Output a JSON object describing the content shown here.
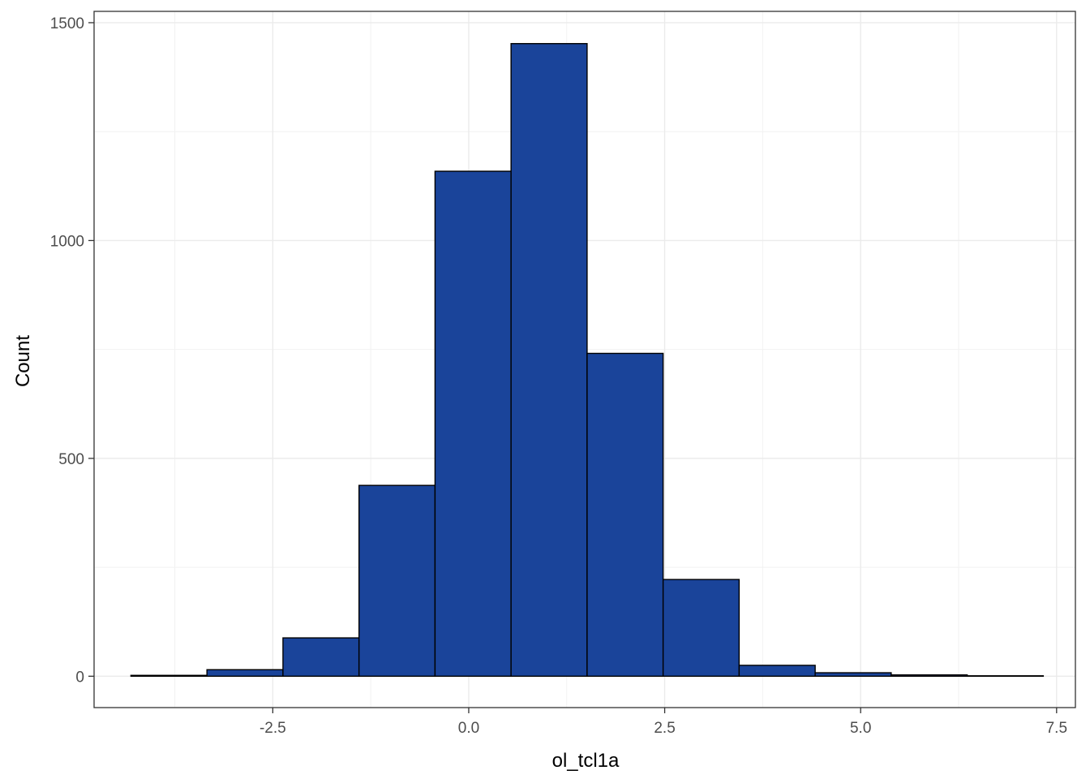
{
  "chart_data": {
    "type": "bar",
    "subtype": "histogram",
    "xlabel": "ol_tcl1a",
    "ylabel": "Count",
    "xlim": [
      -4.78,
      7.74
    ],
    "ylim": [
      -72,
      1526
    ],
    "xticks": [
      -2.5,
      0.0,
      2.5,
      5.0,
      7.5
    ],
    "xtick_labels": [
      "-2.5",
      "0.0",
      "2.5",
      "5.0",
      "7.5"
    ],
    "yticks": [
      0,
      500,
      1000,
      1500
    ],
    "ytick_labels": [
      "0",
      "500",
      "1000",
      "1500"
    ],
    "bins": [
      {
        "x0": -4.31,
        "x1": -3.34,
        "count": 2
      },
      {
        "x0": -3.34,
        "x1": -2.37,
        "count": 15
      },
      {
        "x0": -2.37,
        "x1": -1.4,
        "count": 88
      },
      {
        "x0": -1.4,
        "x1": -0.43,
        "count": 438
      },
      {
        "x0": -0.43,
        "x1": 0.54,
        "count": 1159
      },
      {
        "x0": 0.54,
        "x1": 1.51,
        "count": 1452
      },
      {
        "x0": 1.51,
        "x1": 2.48,
        "count": 741
      },
      {
        "x0": 2.48,
        "x1": 3.45,
        "count": 222
      },
      {
        "x0": 3.45,
        "x1": 4.42,
        "count": 25
      },
      {
        "x0": 4.42,
        "x1": 5.39,
        "count": 8
      },
      {
        "x0": 5.39,
        "x1": 6.36,
        "count": 3
      },
      {
        "x0": 6.36,
        "x1": 7.33,
        "count": 1
      }
    ],
    "fill_color": "#1a449a",
    "edge_color": "#000000",
    "grid": true,
    "legend": "none"
  }
}
